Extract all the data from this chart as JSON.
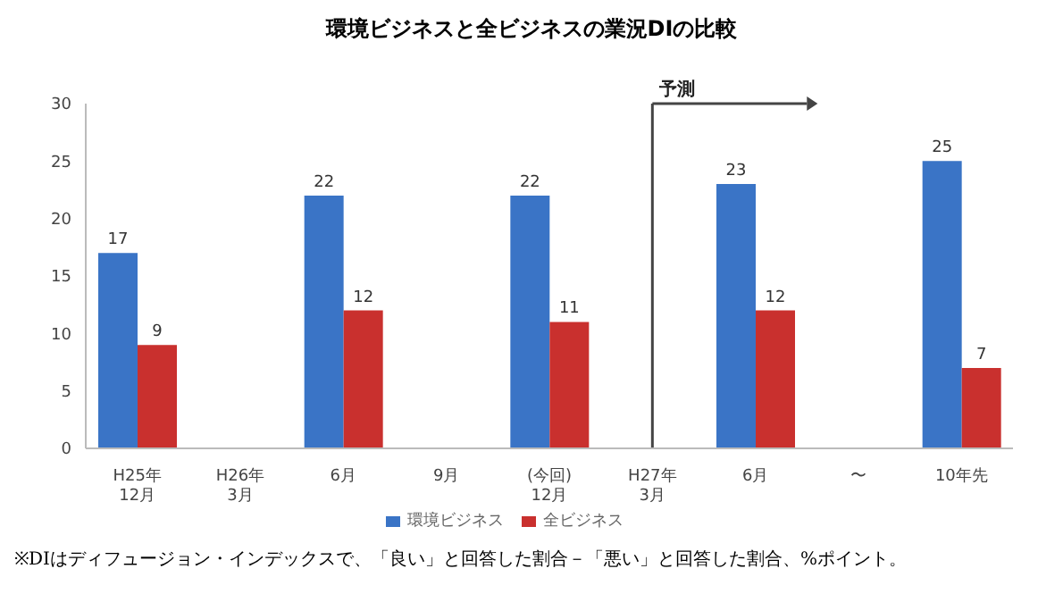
{
  "chart_data": {
    "type": "bar",
    "title": "環境ビジネスと全ビジネスの業況DIの比較",
    "categories": [
      "H25年\n12月",
      "H26年\n3月",
      "6月",
      "9月",
      "(今回)\n12月",
      "H27年\n3月",
      "6月",
      "〜",
      "10年先"
    ],
    "series": [
      {
        "name": "環境ビジネス",
        "color": "#3a74c6",
        "values": [
          17,
          null,
          22,
          null,
          22,
          null,
          23,
          null,
          25
        ]
      },
      {
        "name": "全ビジネス",
        "color": "#c9302e",
        "values": [
          9,
          null,
          12,
          null,
          11,
          null,
          12,
          null,
          7
        ]
      }
    ],
    "ylim": [
      0,
      30
    ],
    "yticks": [
      0,
      5,
      10,
      15,
      20,
      25,
      30
    ],
    "grid": false,
    "legend": "bottom",
    "data_labels": true,
    "ref_lines": [
      {
        "axis": "x",
        "value": "H27年\n3月",
        "label": "予測",
        "color": "#444444"
      }
    ],
    "annotations": [
      "※DIはディフュージョン・インデックスで、「良い」と回答した割合－「悪い」と回答した割合、%ポイント。"
    ]
  }
}
